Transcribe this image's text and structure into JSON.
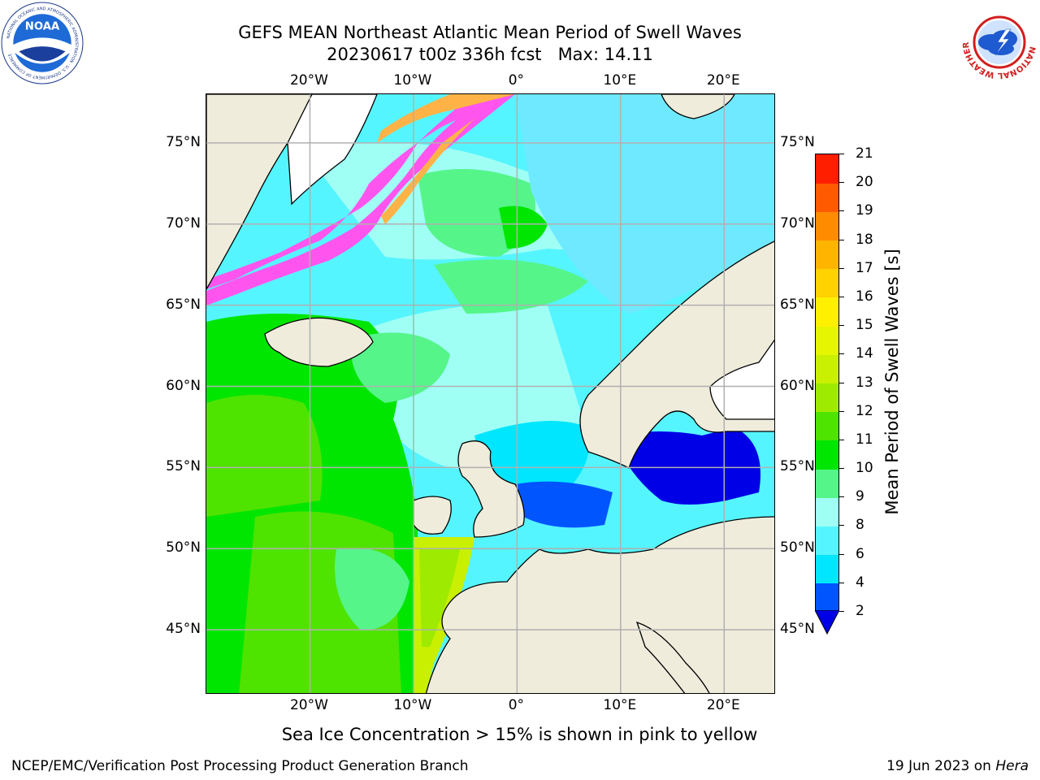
{
  "header": {
    "title_line1": "GEFS MEAN Northeast Atlantic Mean Period of Swell Waves",
    "title_line2": "20230617 t00z 336h fcst   Max: 14.11"
  },
  "logos": {
    "noaa": {
      "icon": "noaa-logo",
      "text": "NOAA",
      "ring_text": "NATIONAL OCEANIC AND ATMOSPHERIC ADMINISTRATION · U.S. DEPARTMENT OF COMMERCE"
    },
    "nws": {
      "icon": "nws-logo",
      "ring_text": "NATIONAL WEATHER SERVICE"
    }
  },
  "map": {
    "projection": "lat-lon",
    "lon_range": [
      -30,
      25
    ],
    "lat_range": [
      41,
      78
    ],
    "lon_ticks": [
      {
        "value": -20,
        "label": "20°W"
      },
      {
        "value": -10,
        "label": "10°W"
      },
      {
        "value": 0,
        "label": "0°"
      },
      {
        "value": 10,
        "label": "10°E"
      },
      {
        "value": 20,
        "label": "20°E"
      }
    ],
    "lat_ticks": [
      {
        "value": 75,
        "label": "75°N"
      },
      {
        "value": 70,
        "label": "70°N"
      },
      {
        "value": 65,
        "label": "65°N"
      },
      {
        "value": 60,
        "label": "60°N"
      },
      {
        "value": 55,
        "label": "55°N"
      },
      {
        "value": 50,
        "label": "50°N"
      },
      {
        "value": 45,
        "label": "45°N"
      }
    ],
    "gridlines": true,
    "colors": {
      "land": "#efecdc",
      "ice_free": "#ffffff",
      "sea_ice_pink": "#ff55ee",
      "sea_ice_orange": "#ffb347",
      "grid": "#b0b0b0"
    }
  },
  "colorbar": {
    "label": "Mean Period of Swell Waves [s]",
    "extend": "min",
    "boundaries": [
      2,
      4,
      6,
      8,
      9,
      10,
      11,
      12,
      13,
      14,
      15,
      16,
      17,
      18,
      19,
      20,
      21
    ],
    "colors": [
      "#0055ff",
      "#00e6ff",
      "#55f5ff",
      "#a0fff5",
      "#55f58a",
      "#00e600",
      "#4fe300",
      "#9eea00",
      "#c8f000",
      "#e6f500",
      "#fff000",
      "#ffd200",
      "#ffb400",
      "#ff8c00",
      "#ff5a00",
      "#ff1e00"
    ],
    "under_color": "#0000e6",
    "tick_labels": [
      "2",
      "4",
      "6",
      "8",
      "9",
      "10",
      "11",
      "12",
      "13",
      "14",
      "15",
      "16",
      "17",
      "18",
      "19",
      "20",
      "21"
    ]
  },
  "subtitle": "Sea Ice Concentration > 15% is shown in pink to yellow",
  "footer": {
    "left": "NCEP/EMC/Verification Post Processing Product Generation Branch",
    "right_prefix": "19 Jun 2023 on ",
    "right_machine": "Hera"
  }
}
